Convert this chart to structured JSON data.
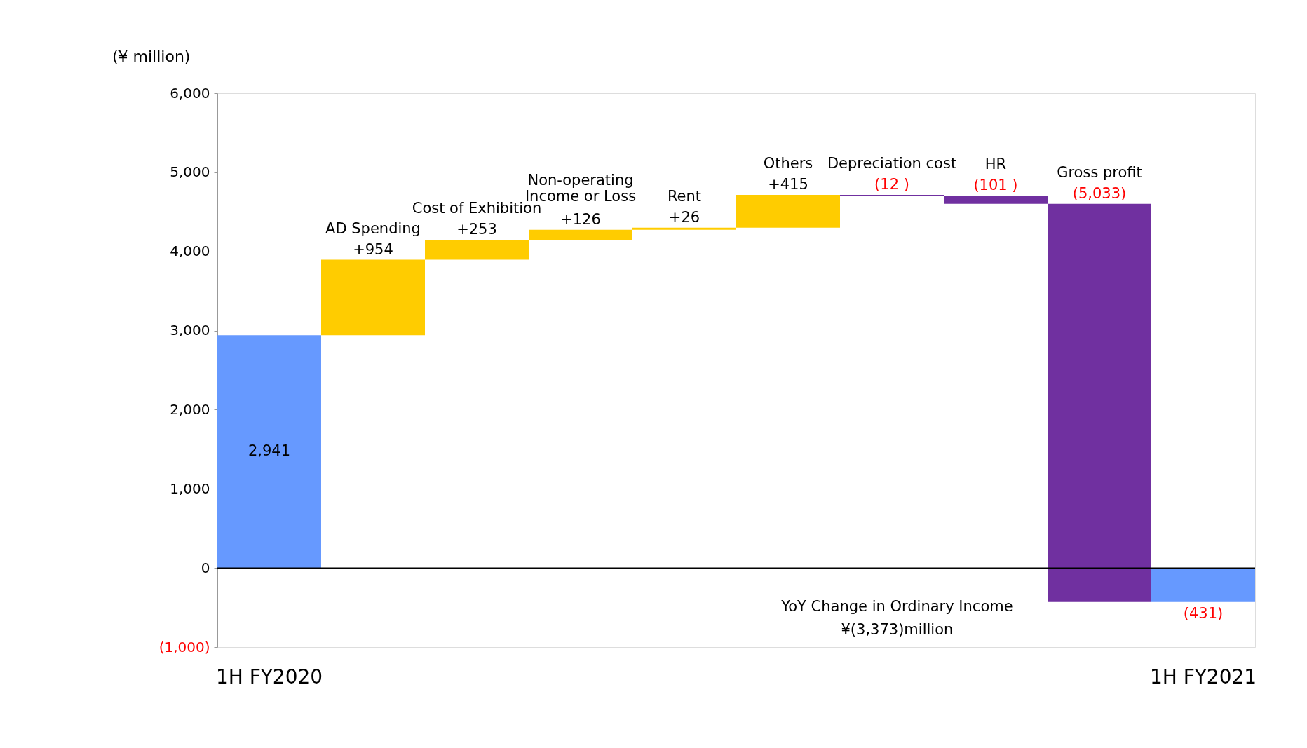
{
  "chart_data": {
    "type": "bar",
    "ylabel": "(¥ million)",
    "categories": [
      "1H FY2020",
      "AD Spending",
      "Cost of  Exhibition",
      "Non-operating\nIncome or Loss",
      "Rent",
      "Others",
      "Depreciation cost",
      "HR",
      "Gross profit",
      "1H FY2021"
    ],
    "base": [
      0,
      2941,
      3895,
      4148,
      4274,
      4300,
      4715,
      4703,
      4602,
      0
    ],
    "values": [
      2941,
      954,
      253,
      126,
      26,
      415,
      -12,
      -101,
      -5033,
      -431
    ],
    "colors": [
      "#6699ff",
      "#ffcc00",
      "#ffcc00",
      "#ffcc00",
      "#ffcc00",
      "#ffcc00",
      "#7030a0",
      "#7030a0",
      "#7030a0",
      "#6699ff"
    ],
    "value_labels": [
      "2,941",
      "+954",
      "+253",
      "+126",
      "+26",
      "+415",
      "(12 )",
      "(101 )",
      "(5,033)",
      "(431)"
    ],
    "ylim": [
      -1000,
      6000
    ],
    "yticks": [
      {
        "value": -1000,
        "label": "(1,000)"
      },
      0,
      {
        "value": 1000,
        "label": "1,000"
      },
      {
        "value": 2000,
        "label": "2,000"
      },
      {
        "value": 3000,
        "label": "3,000"
      },
      {
        "value": 4000,
        "label": "4,000"
      },
      {
        "value": 5000,
        "label": "5,000"
      },
      {
        "value": 6000,
        "label": "6,000"
      }
    ],
    "ref_lines": [
      {
        "axis": "y",
        "value": 0,
        "color": "#000000"
      }
    ],
    "annotations": [
      "YoY Change in Ordinary Income",
      "¥(3,373)million"
    ],
    "grid": false
  }
}
